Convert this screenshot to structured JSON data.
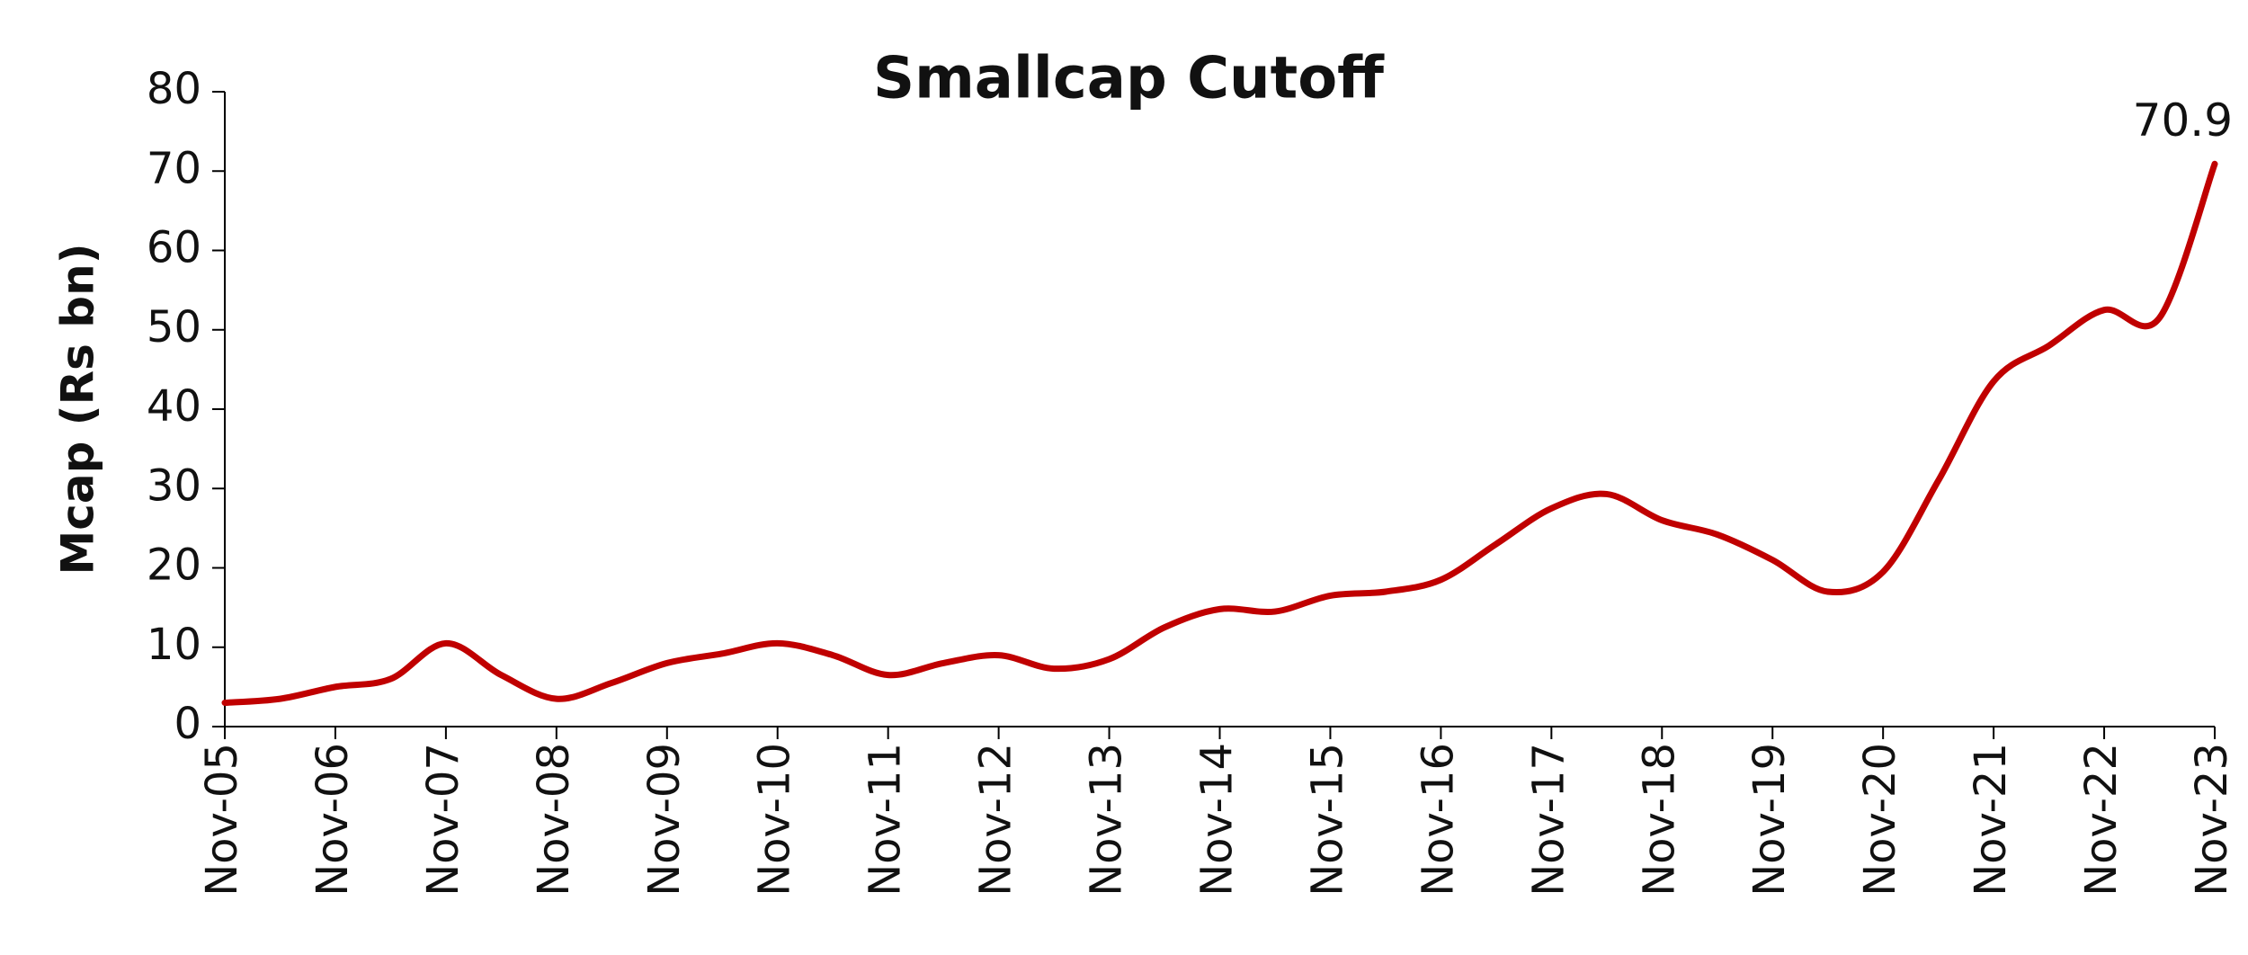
{
  "chart_data": {
    "type": "line",
    "title": "Smallcap Cutoff",
    "y_label": "Mcap (Rs bn)",
    "categories": [
      "Nov-05",
      null,
      "Nov-06",
      null,
      "Nov-07",
      null,
      "Nov-08",
      null,
      "Nov-09",
      null,
      "Nov-10",
      null,
      "Nov-11",
      null,
      "Nov-12",
      null,
      "Nov-13",
      null,
      "Nov-14",
      null,
      "Nov-15",
      null,
      "Nov-16",
      null,
      "Nov-17",
      null,
      "Nov-18",
      null,
      "Nov-19",
      null,
      "Nov-20",
      null,
      "Nov-21",
      null,
      "Nov-22",
      null,
      "Nov-23"
    ],
    "values": [
      3,
      3.5,
      5,
      6,
      10.5,
      6.5,
      3.5,
      5.5,
      8,
      9.2,
      10.5,
      9,
      6.5,
      8,
      9,
      7.3,
      8.5,
      12.5,
      14.8,
      14.5,
      16.5,
      17,
      18.5,
      23,
      27.5,
      29.3,
      26,
      24.2,
      21,
      17,
      19.5,
      31,
      43.5,
      48,
      52.5,
      51.5,
      70.9
    ],
    "color": "#c00000",
    "ylim": [
      0,
      80
    ],
    "yticks": [
      0,
      10,
      20,
      30,
      40,
      50,
      60,
      70,
      80
    ],
    "grid": false
  }
}
